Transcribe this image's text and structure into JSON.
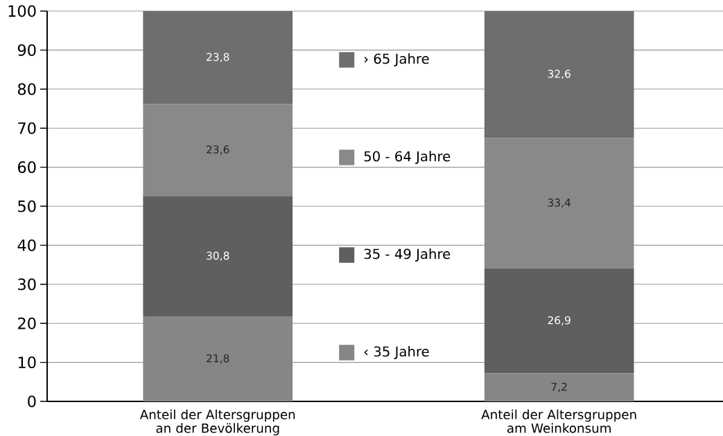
{
  "chart_data": {
    "type": "bar",
    "stacked": true,
    "categories": [
      "Anteil der Altersgruppen an der Bevölkerung",
      "Anteil der Altersgruppen am Weinkonsum"
    ],
    "series": [
      {
        "name": "‹ 35 Jahre",
        "color": "#868686",
        "values": [
          21.8,
          7.2
        ],
        "value_labels": [
          "21,8",
          "7,2"
        ]
      },
      {
        "name": "35 - 49 Jahre",
        "color": "#5f5f5f",
        "values": [
          30.8,
          26.9
        ],
        "value_labels": [
          "30,8",
          "26,9"
        ]
      },
      {
        "name": "50 - 64 Jahre",
        "color": "#898989",
        "values": [
          23.6,
          33.4
        ],
        "value_labels": [
          "23,6",
          "33,4"
        ]
      },
      {
        "name": "› 65 Jahre",
        "color": "#6e6e6e",
        "values": [
          23.8,
          32.6
        ],
        "value_labels": [
          "23,8",
          "32,6"
        ]
      }
    ],
    "ylim": [
      0,
      100
    ],
    "yticks": [
      0,
      10,
      20,
      30,
      40,
      50,
      60,
      70,
      80,
      90,
      100
    ],
    "grid": "y",
    "legend": "center"
  }
}
